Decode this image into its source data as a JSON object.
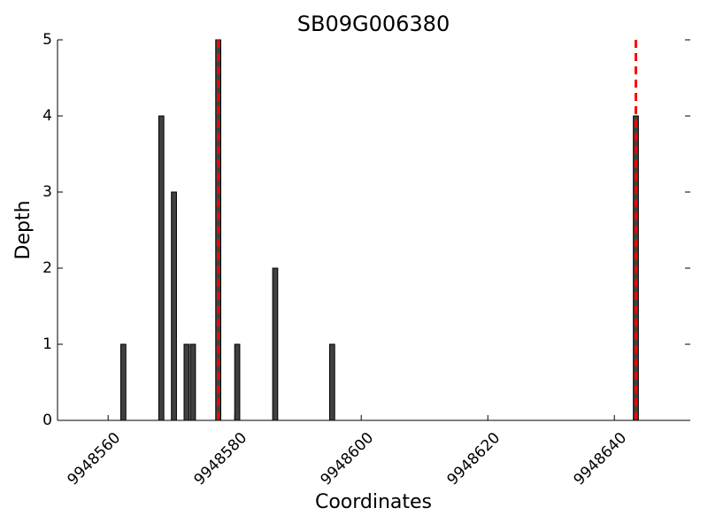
{
  "chart_data": {
    "type": "bar",
    "title": "SB09G006380",
    "x_label": "Coordinates",
    "y_label": "Depth",
    "x": [
      9948562,
      9948568,
      9948570,
      9948572,
      9948573,
      9948577,
      9948580,
      9948586,
      9948595,
      9948643
    ],
    "values": [
      1,
      4,
      3,
      1,
      1,
      5,
      1,
      2,
      1,
      4
    ],
    "color": "#404040",
    "xlim": [
      9948552,
      9948652
    ],
    "xticks": [
      9948560,
      9948580,
      9948600,
      9948620,
      9948640
    ],
    "ylim": [
      0,
      5
    ],
    "yticks": [
      0,
      1,
      2,
      3,
      4,
      5
    ],
    "markers": [
      {
        "x": 9948577,
        "color": "#ff0000"
      },
      {
        "x": 9948643,
        "color": "#ff0000"
      }
    ]
  }
}
